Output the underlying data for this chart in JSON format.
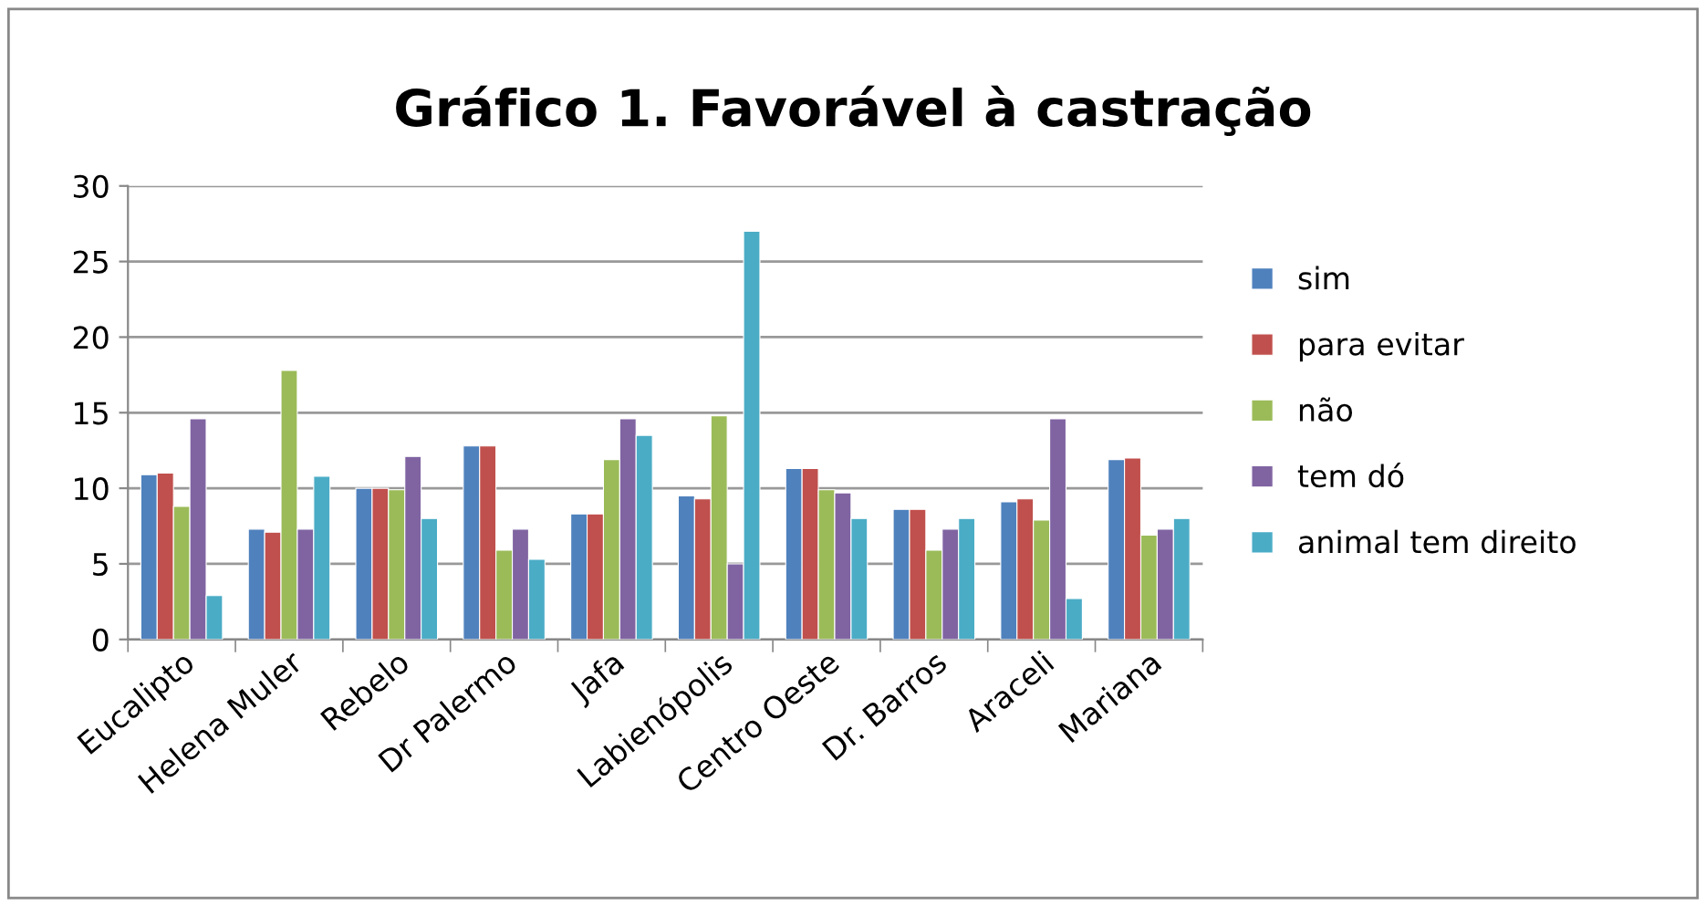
{
  "chart_data": {
    "type": "bar",
    "title": "Gráfico 1. Favorável à castração",
    "categories": [
      "Eucalipto",
      "Helena Muler",
      "Rebelo",
      "Dr Palermo",
      "Jafa",
      "Labienópolis",
      "Centro Oeste",
      "Dr. Barros",
      "Araceli",
      "Mariana"
    ],
    "series": [
      {
        "name": "sim",
        "color": "#4f81bd",
        "values": [
          10.9,
          7.3,
          10.0,
          12.8,
          8.3,
          9.5,
          11.3,
          8.6,
          9.1,
          11.9
        ]
      },
      {
        "name": "para evitar",
        "color": "#c0504d",
        "values": [
          11.0,
          7.1,
          10.0,
          12.8,
          8.3,
          9.3,
          11.3,
          8.6,
          9.3,
          12.0
        ]
      },
      {
        "name": "não",
        "color": "#9bbb59",
        "values": [
          8.8,
          17.8,
          9.9,
          5.9,
          11.9,
          14.8,
          9.9,
          5.9,
          7.9,
          6.9
        ]
      },
      {
        "name": "tem dó",
        "color": "#8064a2",
        "values": [
          14.6,
          7.3,
          12.1,
          7.3,
          14.6,
          5.0,
          9.7,
          7.3,
          14.6,
          7.3
        ]
      },
      {
        "name": "animal tem direito",
        "color": "#4bacc6",
        "values": [
          2.9,
          10.8,
          8.0,
          5.3,
          13.5,
          27.0,
          8.0,
          8.0,
          2.7,
          8.0
        ]
      }
    ],
    "ylim": [
      0,
      30
    ],
    "yticks": [
      0,
      5,
      10,
      15,
      20,
      25,
      30
    ],
    "grid": "y",
    "legend": "right"
  }
}
